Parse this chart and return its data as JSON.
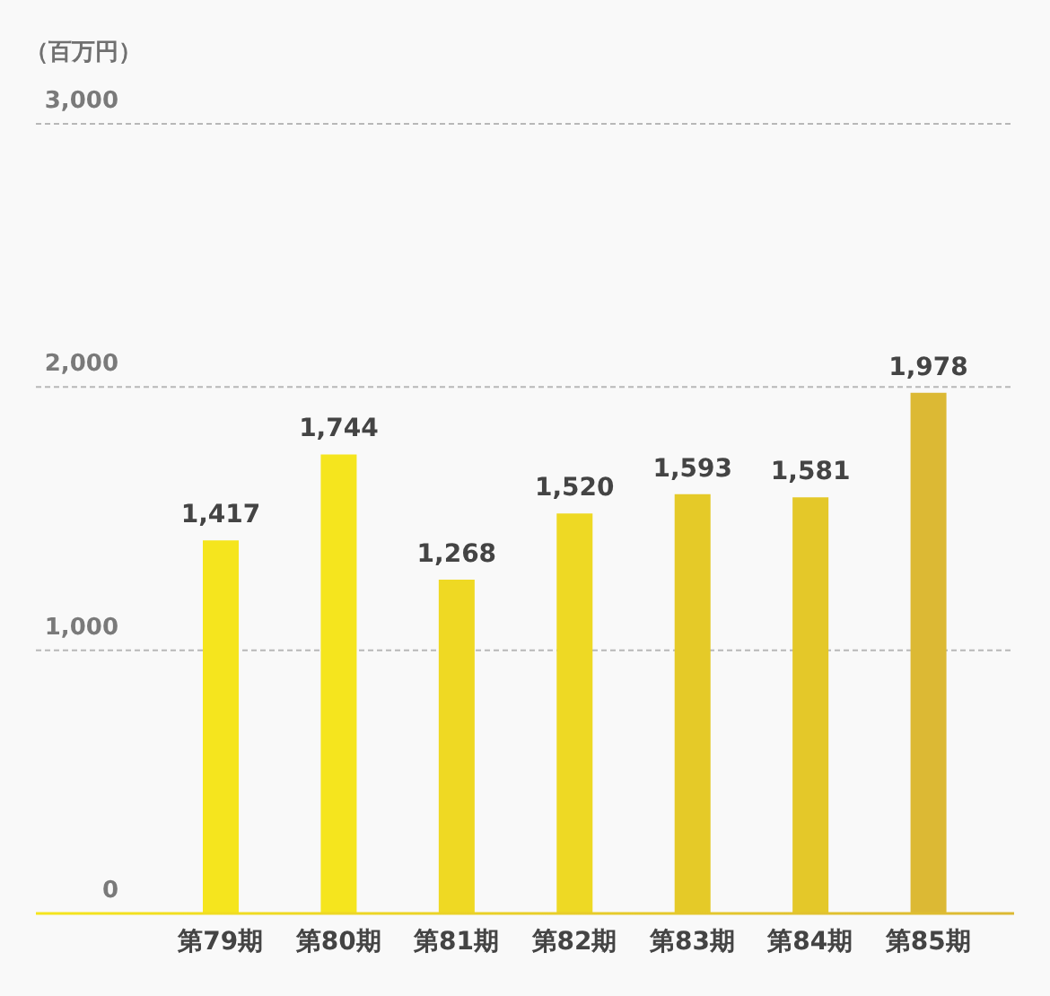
{
  "chart_data": {
    "type": "bar",
    "ylabel": "（百万円）",
    "categories": [
      "第79期",
      "第80期",
      "第81期",
      "第82期",
      "第83期",
      "第84期",
      "第85期"
    ],
    "values": [
      1417,
      1744,
      1268,
      1520,
      1593,
      1581,
      1978
    ],
    "value_labels": [
      "1,417",
      "1,744",
      "1,268",
      "1,520",
      "1,593",
      "1,581",
      "1,978"
    ],
    "colors": [
      "#f5e51e",
      "#f5e51e",
      "#efd923",
      "#eed924",
      "#e5ca28",
      "#e4c829",
      "#dcb934"
    ],
    "ylim": [
      0,
      3000
    ],
    "yticks": [
      0,
      {
        "value": 1000,
        "label": "1,000"
      },
      {
        "value": 2000,
        "label": "2,000"
      },
      {
        "value": 3000,
        "label": "3,000"
      }
    ],
    "grid": "y"
  }
}
